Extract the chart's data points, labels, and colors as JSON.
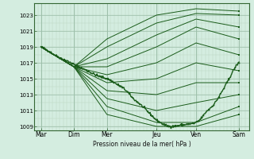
{
  "background_color": "#d4ede0",
  "plot_bg_color": "#d4ede0",
  "grid_color_major": "#9dbfaa",
  "grid_color_minor": "#b8d4c0",
  "line_color": "#1a5c1a",
  "ylabel_ticks": [
    1009,
    1011,
    1013,
    1015,
    1017,
    1019,
    1021,
    1023
  ],
  "xlabels": [
    "Mar",
    "Dim",
    "Mer",
    "Jeu",
    "Ven",
    "Sam"
  ],
  "xlabel_text": "Pression niveau de la mer( hPa )",
  "day_positions": [
    0.0,
    1.0,
    2.0,
    3.5,
    4.7,
    6.0
  ],
  "lines": [
    [
      1019.0,
      1016.5,
      1020.0,
      1023.0,
      1023.8,
      1023.5
    ],
    [
      1019.0,
      1016.5,
      1019.0,
      1022.0,
      1023.2,
      1023.0
    ],
    [
      1019.0,
      1016.5,
      1017.5,
      1020.5,
      1022.5,
      1021.5
    ],
    [
      1019.0,
      1016.5,
      1016.5,
      1019.0,
      1021.5,
      1020.0
    ],
    [
      1019.0,
      1016.5,
      1015.5,
      1017.0,
      1019.5,
      1018.0
    ],
    [
      1019.0,
      1016.5,
      1014.5,
      1015.0,
      1017.0,
      1016.0
    ],
    [
      1019.0,
      1016.5,
      1013.5,
      1013.0,
      1014.5,
      1014.5
    ],
    [
      1019.0,
      1016.5,
      1012.5,
      1011.0,
      1012.0,
      1013.0
    ],
    [
      1019.0,
      1016.5,
      1011.5,
      1009.5,
      1009.5,
      1011.5
    ],
    [
      1019.0,
      1016.5,
      1010.5,
      1009.0,
      1009.0,
      1010.5
    ]
  ],
  "obs_nodes_x": [
    0.0,
    0.15,
    0.3,
    0.5,
    0.7,
    1.0,
    1.15,
    1.3,
    1.5,
    1.7,
    2.0,
    2.15,
    2.3,
    2.5,
    2.65,
    2.8,
    3.0,
    3.2,
    3.35,
    3.5,
    3.65,
    3.8,
    4.0,
    4.15,
    4.3,
    4.5,
    4.7,
    4.85,
    5.0,
    5.2,
    5.5,
    5.7,
    5.85,
    6.0
  ],
  "obs_nodes_y": [
    1019.0,
    1018.7,
    1018.3,
    1017.8,
    1017.4,
    1016.8,
    1016.5,
    1016.2,
    1015.8,
    1015.4,
    1015.0,
    1014.7,
    1014.3,
    1013.8,
    1013.2,
    1012.5,
    1011.8,
    1011.0,
    1010.4,
    1009.8,
    1009.4,
    1009.1,
    1009.0,
    1009.1,
    1009.2,
    1009.3,
    1009.5,
    1010.0,
    1010.8,
    1011.6,
    1013.5,
    1015.0,
    1016.2,
    1017.0
  ],
  "ylim": [
    1008.5,
    1024.5
  ],
  "xlim": [
    -0.2,
    6.3
  ]
}
